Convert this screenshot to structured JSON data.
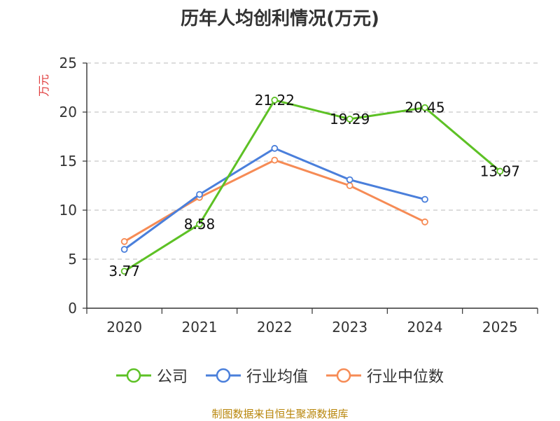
{
  "chart_data": {
    "type": "line",
    "title": "历年人均创利情况(万元)",
    "ylabel": "万元",
    "xlabel": "",
    "categories": [
      "2020",
      "2021",
      "2022",
      "2023",
      "2024",
      "2025"
    ],
    "ylim": [
      0,
      25
    ],
    "yticks": [
      0,
      5,
      10,
      15,
      20,
      25
    ],
    "grid": true,
    "legend_position": "bottom",
    "series": [
      {
        "name": "公司",
        "color": "#5dc125",
        "values": [
          3.77,
          8.58,
          21.22,
          19.29,
          20.45,
          13.97
        ],
        "labels": [
          "3.77",
          "8.58",
          "21.22",
          "19.29",
          "20.45",
          "13.97"
        ]
      },
      {
        "name": "行业均值",
        "color": "#4a7fdb",
        "values": [
          6.0,
          11.6,
          16.3,
          13.1,
          11.1,
          null
        ]
      },
      {
        "name": "行业中位数",
        "color": "#f68b55",
        "values": [
          6.8,
          11.3,
          15.1,
          12.5,
          8.8,
          null
        ]
      }
    ]
  },
  "footer": {
    "source": "制图数据来自恒生聚源数据库"
  }
}
